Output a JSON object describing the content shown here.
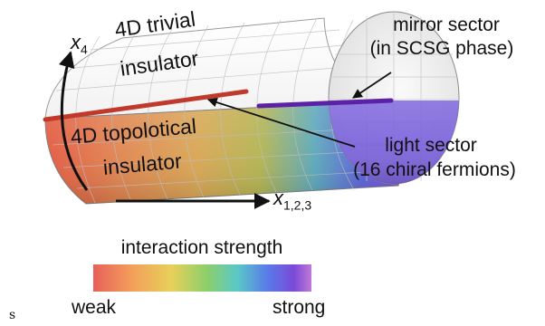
{
  "labels": {
    "x4_base": "x",
    "x4_sub": "4",
    "x123_base": "x",
    "x123_sub": "1,2,3",
    "trivial_line1": "4D trivial",
    "trivial_line2": "insulator",
    "topo_line1": "4D topolotical",
    "topo_line2": "insulator",
    "mirror_line1": "mirror sector",
    "mirror_line2": "(in SCSG phase)",
    "light_line1": "light sector",
    "light_line2": "(16 chiral fermions)",
    "legend_title": "interaction strength",
    "legend_low": "weak",
    "legend_high": "strong",
    "corner_mark": "s"
  },
  "colors": {
    "light_sector_line": "#c0392b",
    "mirror_sector_line": "#5b21a6",
    "grid_line": "#bdbdbd",
    "gradient": [
      "#e8605a",
      "#f2a05a",
      "#e8d05a",
      "#8ccf6a",
      "#5ac8c8",
      "#5a7ae8",
      "#7a4ad8",
      "#c07ad8"
    ]
  },
  "icons": {
    "x4_arrow": "curved-arrow-icon",
    "x123_arrow": "arrow-right-icon"
  }
}
